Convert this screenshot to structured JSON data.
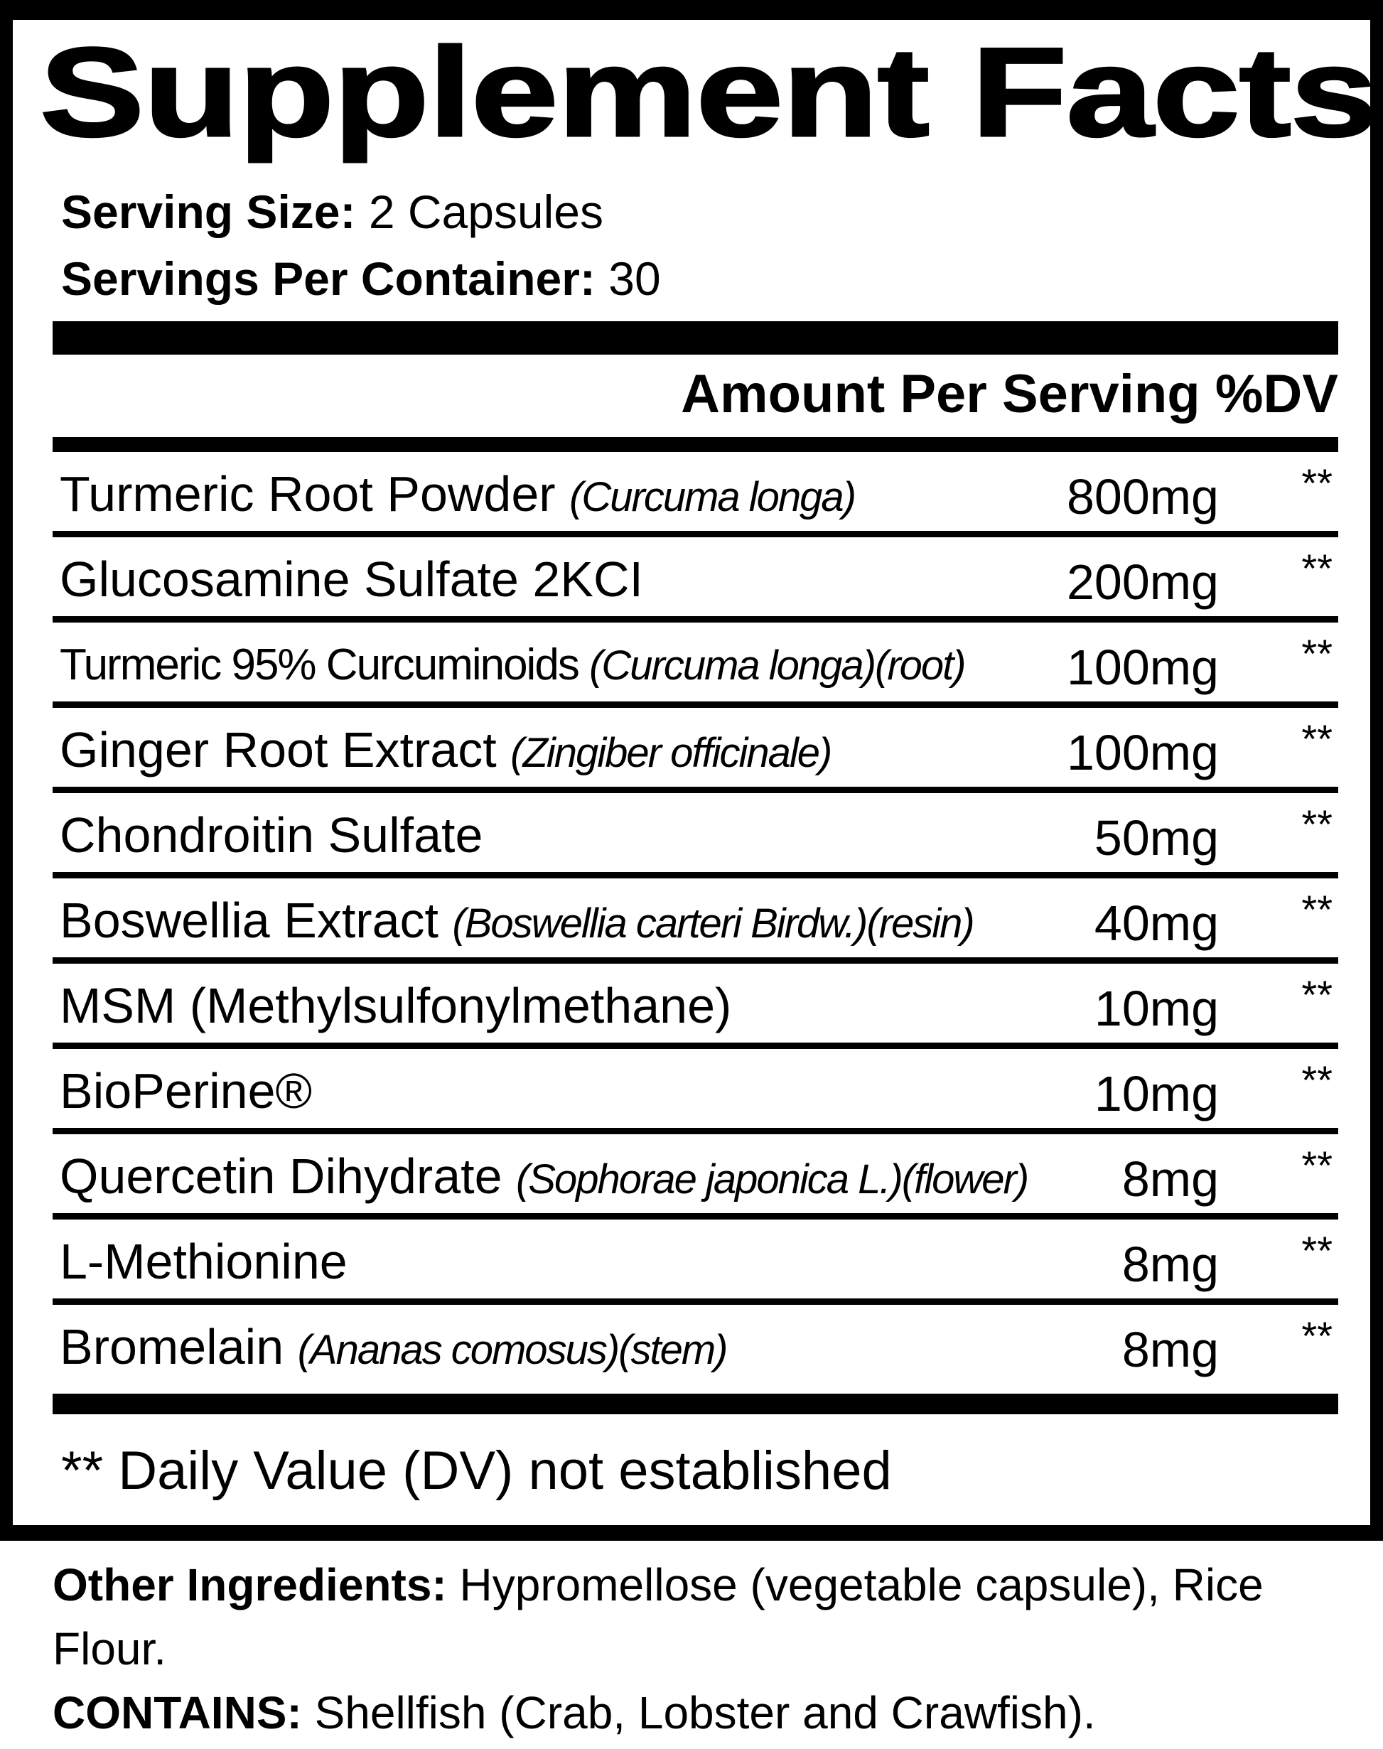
{
  "title": "Supplement Facts",
  "serving_size": {
    "label": "Serving Size:",
    "value": "2 Capsules"
  },
  "servings_per_container": {
    "label": "Servings Per Container:",
    "value": "30"
  },
  "header": "Amount Per Serving %DV",
  "ingredients": [
    {
      "name": "Turmeric Root Powder",
      "source": "(Curcuma longa)",
      "amount": "800mg",
      "dv": "**"
    },
    {
      "name": "Glucosamine Sulfate 2KCI",
      "source": "",
      "amount": "200mg",
      "dv": "**"
    },
    {
      "name": "Turmeric 95% Curcuminoids",
      "source": "(Curcuma longa)(root)",
      "amount": "100mg",
      "dv": "**"
    },
    {
      "name": "Ginger Root Extract",
      "source": "(Zingiber officinale)",
      "amount": "100mg",
      "dv": "**"
    },
    {
      "name": "Chondroitin Sulfate",
      "source": "",
      "amount": "50mg",
      "dv": "**"
    },
    {
      "name": "Boswellia Extract",
      "source": "(Boswellia carteri Birdw.)(resin)",
      "amount": "40mg",
      "dv": "**"
    },
    {
      "name": "MSM (Methylsulfonylmethane)",
      "source": "",
      "amount": "10mg",
      "dv": "**"
    },
    {
      "name": "BioPerine®",
      "source": "",
      "amount": "10mg",
      "dv": "**"
    },
    {
      "name": "Quercetin Dihydrate",
      "source": "(Sophorae japonica L.)(flower)",
      "amount": "8mg",
      "dv": "**"
    },
    {
      "name": "L-Methionine",
      "source": "",
      "amount": "8mg",
      "dv": "**"
    },
    {
      "name": "Bromelain",
      "source": "(Ananas comosus)(stem)",
      "amount": "8mg",
      "dv": "**"
    }
  ],
  "footnote": "** Daily Value (DV) not established",
  "other_ingredients": {
    "label": "Other Ingredients:",
    "value": "Hypromellose (vegetable capsule), Rice Flour."
  },
  "contains": {
    "label": "CONTAINS:",
    "value": "Shellfish (Crab, Lobster and Crawfish)."
  }
}
